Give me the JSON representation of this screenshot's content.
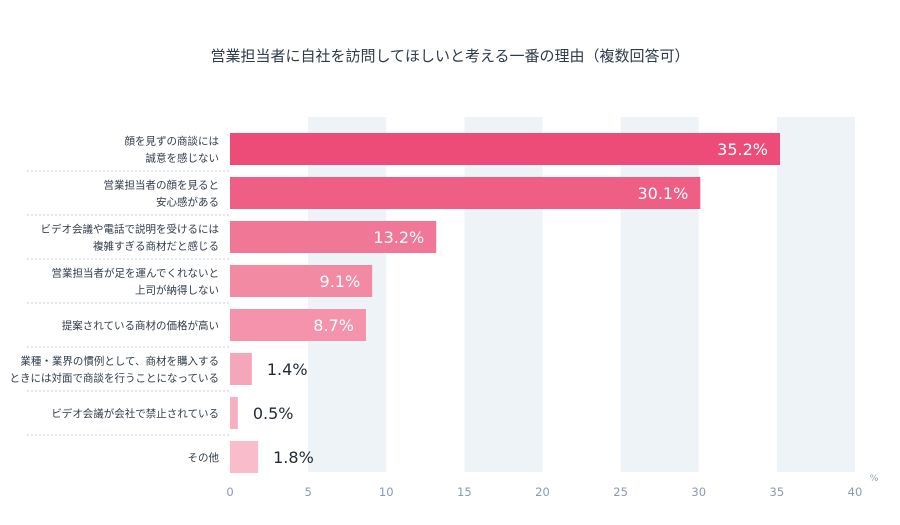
{
  "chart_data": {
    "type": "bar",
    "orientation": "horizontal",
    "title": "営業担当者に自社を訪問してほしいと考える一番の理由（複数回答可）",
    "unit": "%",
    "xlim": [
      0,
      40
    ],
    "x_ticks": [
      0,
      5,
      10,
      15,
      20,
      25,
      30,
      35,
      40
    ],
    "grid": "alternating vertical bands",
    "categories": [
      [
        "顔を見ずの商談には",
        "誠意を感じない"
      ],
      [
        "営業担当者の顔を見ると",
        "安心感がある"
      ],
      [
        "ビデオ会議や電話で説明を受けるには",
        "複雑すぎる商材だと感じる"
      ],
      [
        "営業担当者が足を運んでくれないと",
        "上司が納得しない"
      ],
      [
        "提案されている商材の価格が高い"
      ],
      [
        "業種・業界の慣例として、商材を購入する",
        "ときには対面で商談を行うことになっている"
      ],
      [
        "ビデオ会議が会社で禁止されている"
      ],
      [
        "その他"
      ]
    ],
    "values": [
      35.2,
      30.1,
      13.2,
      9.1,
      8.7,
      1.4,
      0.5,
      1.8
    ],
    "value_labels": [
      "35.2%",
      "30.1%",
      "13.2%",
      "9.1%",
      "8.7%",
      "1.4%",
      "0.5%",
      "1.8%"
    ],
    "colors": [
      "#ec4c77",
      "#ee5e85",
      "#f07896",
      "#f38aa4",
      "#f493ab",
      "#f6a6ba",
      "#f7b0c1",
      "#f8bccb"
    ],
    "band_color": "#eef3f8"
  }
}
